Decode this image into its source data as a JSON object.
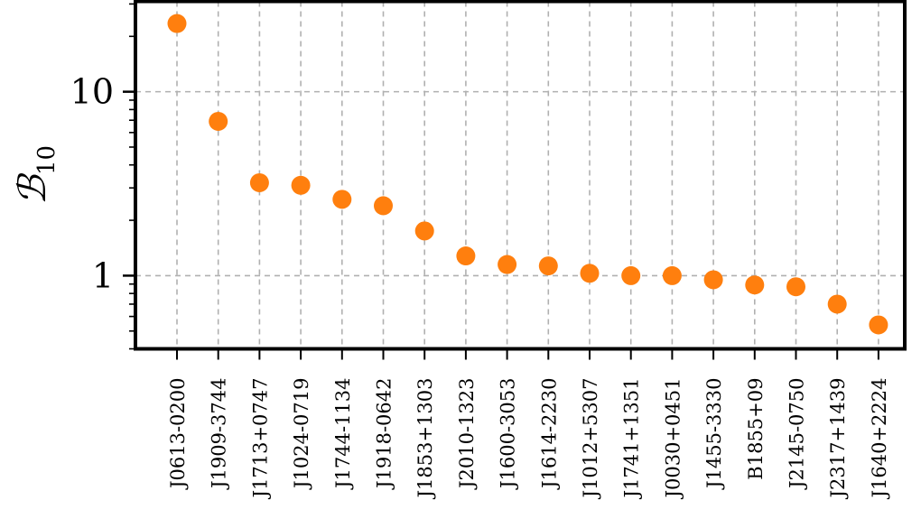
{
  "chart_data": {
    "type": "scatter",
    "title": "",
    "xlabel": "",
    "ylabel": "B10",
    "ylabel_script": "ℬ",
    "ylabel_subscript": "10",
    "yscale": "log",
    "ylim": [
      0.4,
      31
    ],
    "yticks": [
      {
        "value": 1,
        "label": "1"
      },
      {
        "value": 10,
        "label": "10"
      }
    ],
    "grid": true,
    "marker_color": "#ff7f0e",
    "categories": [
      "J0613-0200",
      "J1909-3744",
      "J1713+0747",
      "J1024-0719",
      "J1744-1134",
      "J1918-0642",
      "J1853+1303",
      "J2010-1323",
      "J1600-3053",
      "J1614-2230",
      "J1012+5307",
      "J1741+1351",
      "J0030+0451",
      "J1455-3330",
      "B1855+09",
      "J2145-0750",
      "J2317+1439",
      "J1640+2224"
    ],
    "values": [
      23.5,
      6.9,
      3.2,
      3.1,
      2.6,
      2.4,
      1.75,
      1.28,
      1.15,
      1.13,
      1.03,
      1.0,
      1.0,
      0.95,
      0.89,
      0.87,
      0.7,
      0.54
    ]
  }
}
